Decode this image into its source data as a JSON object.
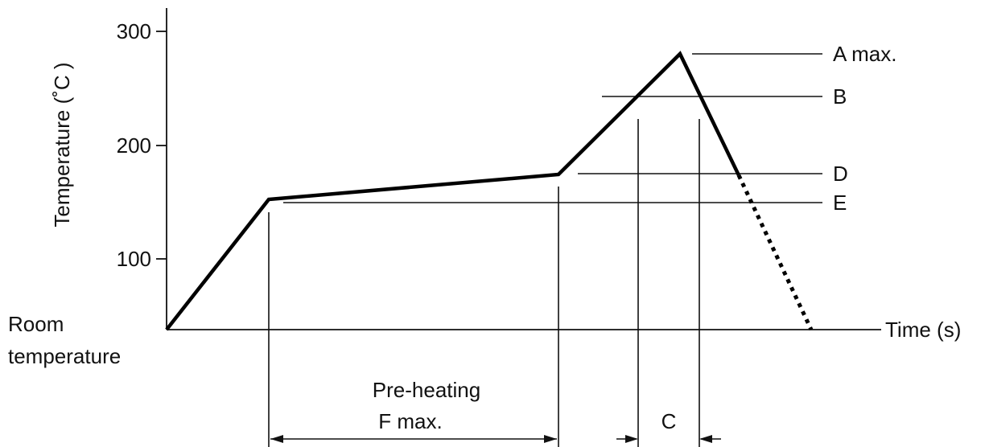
{
  "y_axis": {
    "label": "Temperature (˚C )",
    "ticks": [
      "300",
      "200",
      "100"
    ]
  },
  "x_axis": {
    "label": "Time (s)"
  },
  "origin_label": [
    "Room",
    "temperature"
  ],
  "levels": {
    "a": "A max.",
    "b": "B",
    "d": "D",
    "e": "E"
  },
  "spans": {
    "preheat_line1": "Pre-heating",
    "preheat_line2": "F max.",
    "c": "C"
  },
  "colors": {
    "line": "#000000",
    "text": "#111111",
    "background": "#ffffff"
  }
}
